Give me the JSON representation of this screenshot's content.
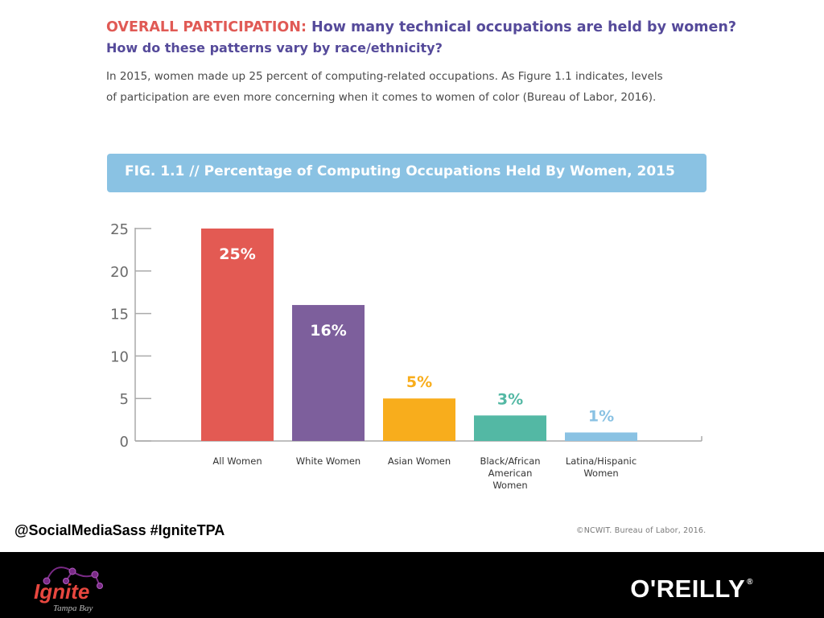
{
  "header": {
    "kicker": "OVERALL PARTICIPATION:",
    "question1": "How many technical occupations are held by women?",
    "question2": "How do these patterns vary by race/ethnicity?",
    "intro_line1": "In 2015, women made up 25 percent of computing-related occupations. As Figure 1.1 indicates, levels",
    "intro_line2": "of participation are even more concerning when it comes to women of color (Bureau of Labor, 2016)."
  },
  "figure": {
    "banner": "FIG. 1.1  //  Percentage of Computing Occupations Held By Women, 2015"
  },
  "chart_data": {
    "type": "bar",
    "title": "FIG. 1.1  //  Percentage of Computing Occupations Held By Women, 2015",
    "xlabel": "",
    "ylabel": "",
    "categories": [
      [
        "All Women"
      ],
      [
        "White Women"
      ],
      [
        "Asian Women"
      ],
      [
        "Black/African",
        "American",
        "Women"
      ],
      [
        "Latina/Hispanic",
        "Women"
      ]
    ],
    "values": [
      25,
      16,
      5,
      3,
      1
    ],
    "data_labels": [
      "25%",
      "16%",
      "5%",
      "3%",
      "1%"
    ],
    "colors": [
      "#e35a53",
      "#7d5f9c",
      "#f8ad1c",
      "#53b8a4",
      "#8ac2e3"
    ],
    "label_inside": [
      true,
      true,
      false,
      false,
      false
    ],
    "label_colors": [
      "#ffffff",
      "#ffffff",
      "#f8ad1c",
      "#53b8a4",
      "#8ac2e3"
    ],
    "ylim": [
      0,
      25
    ],
    "yticks": [
      0,
      5,
      10,
      15,
      20,
      25
    ],
    "grid": false,
    "legend": "none"
  },
  "footer": {
    "handle": "@SocialMediaSass  #IgniteTPA",
    "source": "©NCWIT.  Bureau of Labor, 2016."
  },
  "branding": {
    "ignite": "Ignite",
    "ignite_sub": "Tampa Bay",
    "oreilly": "O'REILLY",
    "oreilly_mark": "®"
  }
}
